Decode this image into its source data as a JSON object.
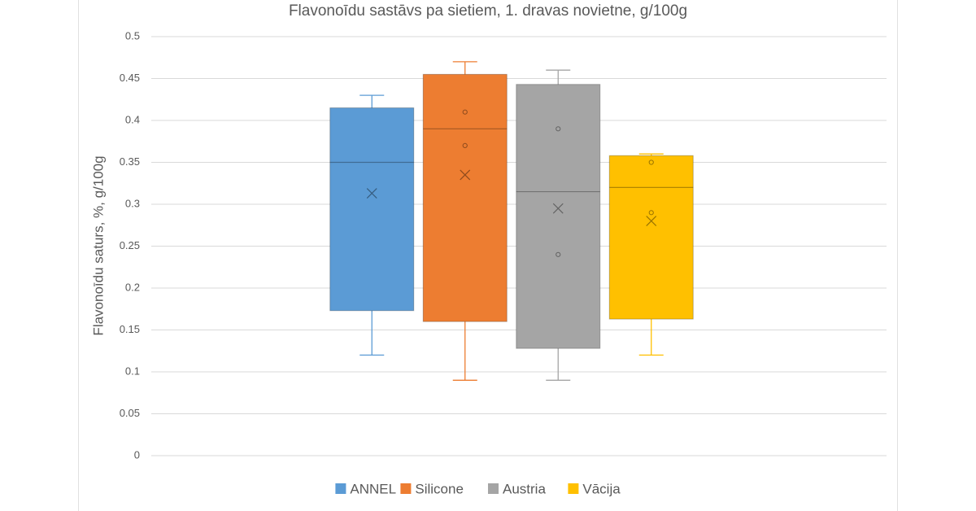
{
  "chart_data": {
    "type": "box",
    "title": "Flavonoīdu sastāvs pa sietiem, 1. dravas novietne, g/100g",
    "y_label": "Flavonoīdu saturs, %, g/100g",
    "ylim": [
      0,
      0.5
    ],
    "yticks": [
      0,
      0.05,
      0.1,
      0.15,
      0.2,
      0.25,
      0.3,
      0.35,
      0.4,
      0.45,
      0.5
    ],
    "grid": true,
    "legend": "bottom",
    "series": [
      {
        "name": "ANNEL",
        "color": "#5b9bd5",
        "min": 0.12,
        "q1": 0.173,
        "median": 0.35,
        "q3": 0.415,
        "max": 0.43,
        "mean": 0.313,
        "points": []
      },
      {
        "name": "Silicone",
        "color": "#ed7d31",
        "min": 0.09,
        "q1": 0.16,
        "median": 0.39,
        "q3": 0.455,
        "max": 0.47,
        "mean": 0.335,
        "points": [
          0.41,
          0.37
        ]
      },
      {
        "name": "Austria",
        "color": "#a5a5a5",
        "min": 0.09,
        "q1": 0.128,
        "median": 0.315,
        "q3": 0.443,
        "max": 0.46,
        "mean": 0.295,
        "points": [
          0.39,
          0.24
        ]
      },
      {
        "name": "Vācija",
        "color": "#ffc000",
        "min": 0.12,
        "q1": 0.163,
        "median": 0.32,
        "q3": 0.358,
        "max": 0.36,
        "mean": 0.28,
        "points": [
          0.35,
          0.29
        ]
      }
    ]
  }
}
